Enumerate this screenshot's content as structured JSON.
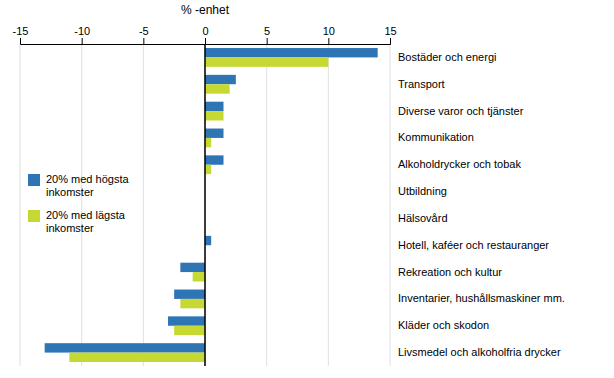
{
  "chart_data": {
    "type": "bar",
    "orientation": "horizontal",
    "categories": [
      "Bostäder och energi",
      "Transport",
      "Diverse varor och tjänster",
      "Kommunikation",
      "Alkoholdrycker och tobak",
      "Utbildning",
      "Hälsovård",
      "Hotell, kaféer och restauranger",
      "Rekreation och kultur",
      "Inventarier, hushållsmaskiner mm.",
      "Kläder och skodon",
      "Livsmedel och alkoholfria drycker"
    ],
    "series": [
      {
        "name": "20% med högsta\ninkomster",
        "color": "#2E75B6",
        "values": [
          14.0,
          2.5,
          1.5,
          1.5,
          1.5,
          0.0,
          0.0,
          0.5,
          -2.0,
          -2.5,
          -3.0,
          -13.0
        ]
      },
      {
        "name": "20% med lägsta\ninkomster",
        "color": "#C5D932",
        "values": [
          10.0,
          2.0,
          1.5,
          0.5,
          0.5,
          0.0,
          0.0,
          0.0,
          -1.0,
          -2.0,
          -2.5,
          -11.0
        ]
      }
    ],
    "xlabel": "% -enhet",
    "xlim": [
      -15,
      15
    ],
    "xticks": [
      -15,
      -10,
      -5,
      0,
      5,
      10,
      15
    ],
    "grid": true,
    "legend": "center left"
  }
}
